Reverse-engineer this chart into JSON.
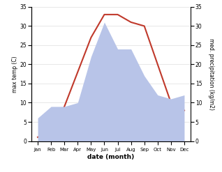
{
  "months": [
    "Jan",
    "Feb",
    "Mar",
    "Apr",
    "May",
    "Jun",
    "Jul",
    "Aug",
    "Sep",
    "Oct",
    "Nov",
    "Dec"
  ],
  "temperature": [
    1,
    3,
    9,
    18,
    27,
    33,
    33,
    31,
    30,
    20,
    10,
    8
  ],
  "precipitation": [
    6,
    9,
    9,
    10,
    22,
    31,
    24,
    24,
    17,
    12,
    11,
    12
  ],
  "temp_color": "#c0392b",
  "precip_color": "#b8c4e8",
  "background_color": "#ffffff",
  "xlabel": "date (month)",
  "ylabel_left": "max temp (C)",
  "ylabel_right": "med. precipitation (kg/m2)",
  "ylim": [
    0,
    35
  ],
  "yticks": [
    0,
    5,
    10,
    15,
    20,
    25,
    30,
    35
  ],
  "grid_color": "#dddddd"
}
